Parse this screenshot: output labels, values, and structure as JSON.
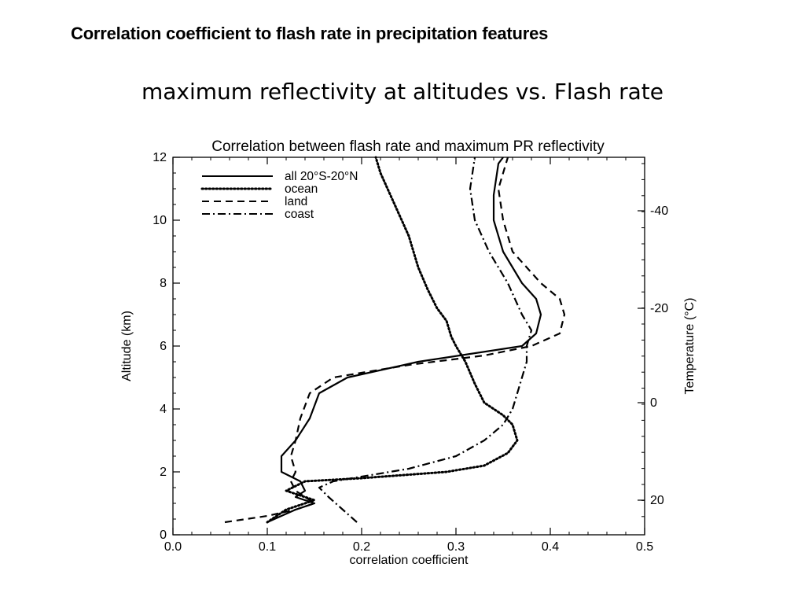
{
  "slide": {
    "header": "Correlation coefficient  to flash rate in precipitation features",
    "subtitle": "maximum reflectivity at altitudes  vs. Flash rate"
  },
  "chart_data": {
    "type": "line",
    "title": "Correlation between flash rate and maximum PR reflectivity",
    "xlabel": "correlation coefficient",
    "ylabel": "Altitude (km)",
    "y2label": "Temperature (°C)",
    "xlim": [
      0.0,
      0.5
    ],
    "ylim": [
      0,
      12
    ],
    "xticks": [
      0.0,
      0.1,
      0.2,
      0.3,
      0.4,
      0.5
    ],
    "xtick_labels": [
      "0.0",
      "0.1",
      "0.2",
      "0.3",
      "0.4",
      "0.5"
    ],
    "yticks": [
      0,
      2,
      4,
      6,
      8,
      10,
      12
    ],
    "ytick_labels": [
      "0",
      "2",
      "4",
      "6",
      "8",
      "10",
      "12"
    ],
    "y2ticks": [
      {
        "label": "-40",
        "altitude": 10.3
      },
      {
        "label": "-20",
        "altitude": 7.2
      },
      {
        "label": "0",
        "altitude": 4.2
      },
      {
        "label": "20",
        "altitude": 1.1
      }
    ],
    "grid": false,
    "legend_position": "top-left",
    "series": [
      {
        "name": "all 20°S-20°N",
        "style": "solid",
        "points": [
          [
            0.1,
            0.4
          ],
          [
            0.13,
            0.8
          ],
          [
            0.15,
            1.0
          ],
          [
            0.13,
            1.2
          ],
          [
            0.14,
            1.4
          ],
          [
            0.135,
            1.7
          ],
          [
            0.115,
            2.0
          ],
          [
            0.115,
            2.5
          ],
          [
            0.13,
            3.0
          ],
          [
            0.145,
            3.7
          ],
          [
            0.155,
            4.5
          ],
          [
            0.185,
            5.0
          ],
          [
            0.26,
            5.5
          ],
          [
            0.37,
            6.0
          ],
          [
            0.385,
            6.4
          ],
          [
            0.39,
            7.0
          ],
          [
            0.385,
            7.5
          ],
          [
            0.37,
            8.0
          ],
          [
            0.35,
            9.0
          ],
          [
            0.34,
            10.0
          ],
          [
            0.34,
            10.8
          ],
          [
            0.345,
            11.8
          ],
          [
            0.35,
            12.0
          ]
        ]
      },
      {
        "name": "ocean",
        "style": "dotted",
        "points": [
          [
            0.1,
            0.4
          ],
          [
            0.12,
            0.8
          ],
          [
            0.15,
            1.1
          ],
          [
            0.12,
            1.4
          ],
          [
            0.14,
            1.7
          ],
          [
            0.2,
            1.8
          ],
          [
            0.29,
            2.0
          ],
          [
            0.33,
            2.2
          ],
          [
            0.355,
            2.6
          ],
          [
            0.365,
            3.0
          ],
          [
            0.36,
            3.5
          ],
          [
            0.35,
            3.8
          ],
          [
            0.33,
            4.2
          ],
          [
            0.32,
            4.8
          ],
          [
            0.31,
            5.5
          ],
          [
            0.3,
            6.0
          ],
          [
            0.295,
            6.3
          ],
          [
            0.29,
            6.8
          ],
          [
            0.28,
            7.2
          ],
          [
            0.27,
            7.8
          ],
          [
            0.26,
            8.5
          ],
          [
            0.25,
            9.5
          ],
          [
            0.235,
            10.5
          ],
          [
            0.22,
            11.5
          ],
          [
            0.215,
            12.0
          ]
        ]
      },
      {
        "name": "land",
        "style": "dashed",
        "points": [
          [
            0.055,
            0.4
          ],
          [
            0.1,
            0.6
          ],
          [
            0.13,
            0.8
          ],
          [
            0.15,
            1.0
          ],
          [
            0.13,
            1.4
          ],
          [
            0.125,
            1.7
          ],
          [
            0.13,
            2.0
          ],
          [
            0.125,
            2.5
          ],
          [
            0.13,
            3.0
          ],
          [
            0.135,
            3.7
          ],
          [
            0.145,
            4.5
          ],
          [
            0.17,
            5.0
          ],
          [
            0.25,
            5.4
          ],
          [
            0.33,
            5.7
          ],
          [
            0.38,
            6.0
          ],
          [
            0.41,
            6.4
          ],
          [
            0.415,
            7.0
          ],
          [
            0.41,
            7.5
          ],
          [
            0.39,
            8.0
          ],
          [
            0.36,
            9.0
          ],
          [
            0.35,
            10.0
          ],
          [
            0.345,
            11.0
          ],
          [
            0.355,
            12.0
          ]
        ]
      },
      {
        "name": "coast",
        "style": "dashdot",
        "points": [
          [
            0.195,
            0.4
          ],
          [
            0.18,
            0.8
          ],
          [
            0.165,
            1.2
          ],
          [
            0.155,
            1.5
          ],
          [
            0.17,
            1.7
          ],
          [
            0.25,
            2.1
          ],
          [
            0.3,
            2.5
          ],
          [
            0.33,
            3.0
          ],
          [
            0.35,
            3.5
          ],
          [
            0.36,
            4.0
          ],
          [
            0.365,
            4.5
          ],
          [
            0.37,
            5.0
          ],
          [
            0.375,
            5.5
          ],
          [
            0.375,
            6.0
          ],
          [
            0.38,
            6.5
          ],
          [
            0.37,
            7.0
          ],
          [
            0.355,
            8.0
          ],
          [
            0.335,
            9.0
          ],
          [
            0.32,
            10.0
          ],
          [
            0.315,
            11.0
          ],
          [
            0.32,
            12.0
          ]
        ]
      }
    ]
  }
}
